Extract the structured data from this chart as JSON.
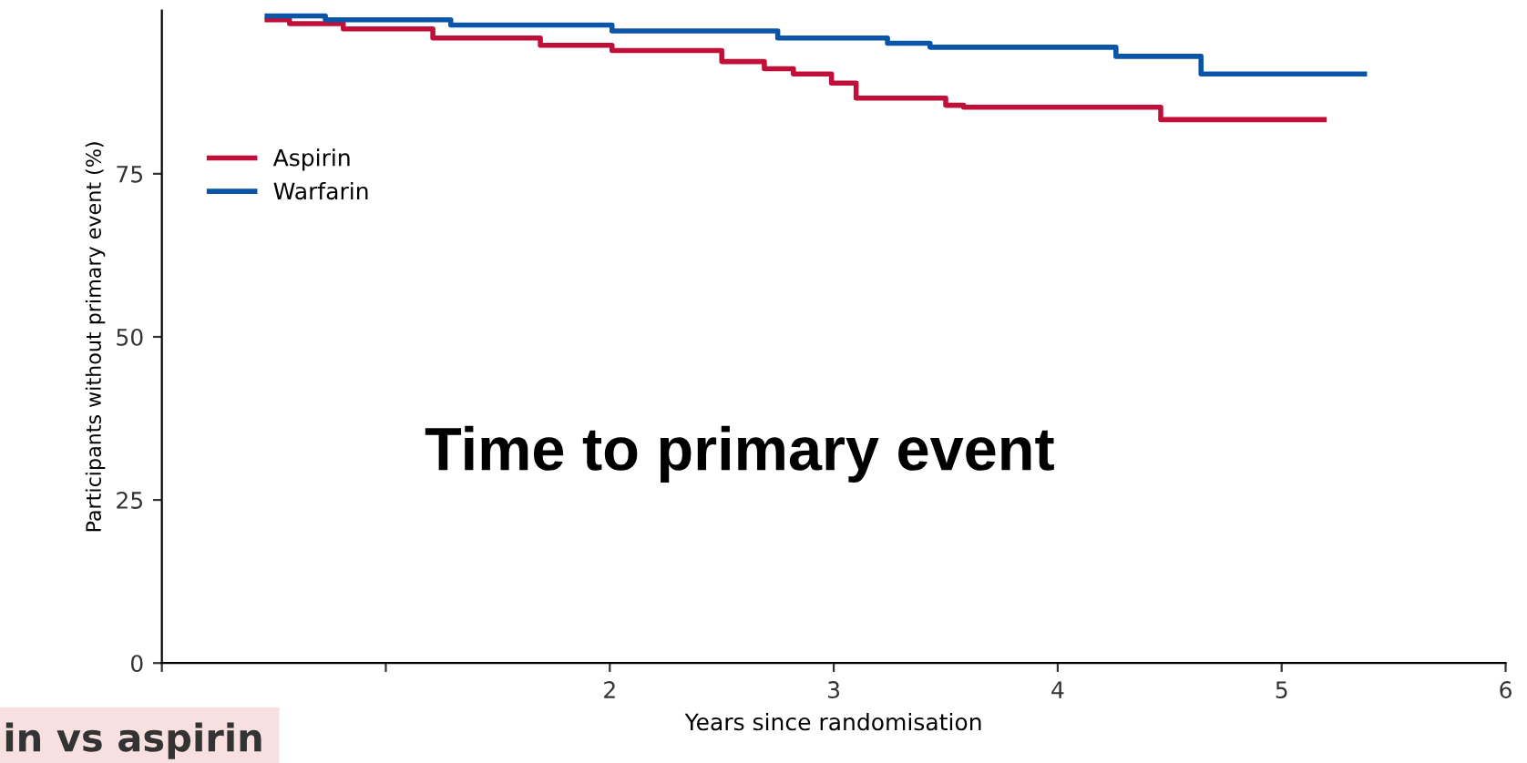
{
  "chart_data": {
    "type": "step",
    "title": "Time to primary event",
    "xlabel": "Years since randomisation",
    "ylabel": "Participants without primary event (%)",
    "annotations": [
      "in vs aspirin"
    ],
    "series": [
      {
        "name": "Aspirin",
        "color": "#c0103a",
        "x": [
          0.47,
          0.57,
          0.81,
          1.21,
          1.69,
          2.01,
          2.5,
          2.69,
          2.82,
          2.99,
          3.1,
          3.5,
          3.58,
          4.46,
          5.19
        ],
        "values": [
          98.6,
          98.0,
          97.2,
          95.8,
          94.7,
          93.9,
          92.2,
          91.1,
          90.3,
          88.9,
          86.6,
          85.5,
          85.2,
          83.3,
          83.3
        ]
      },
      {
        "name": "Warfarin",
        "color": "#0a55a8",
        "x": [
          0.47,
          0.73,
          1.29,
          2.01,
          2.75,
          3.24,
          3.43,
          4.26,
          4.64,
          5.37
        ],
        "values": [
          99.2,
          98.6,
          97.8,
          96.9,
          95.8,
          95.0,
          94.4,
          93.0,
          90.3,
          90.3
        ]
      }
    ],
    "xlim": [
      0,
      6
    ],
    "xticks": [
      {
        "value": 0,
        "label": null
      },
      {
        "value": 1,
        "label": null
      },
      2,
      3,
      4,
      5,
      6
    ],
    "ylim": [
      0,
      100
    ],
    "yticks": [
      0,
      25,
      50,
      75
    ],
    "legend": "top left",
    "grid": false
  }
}
